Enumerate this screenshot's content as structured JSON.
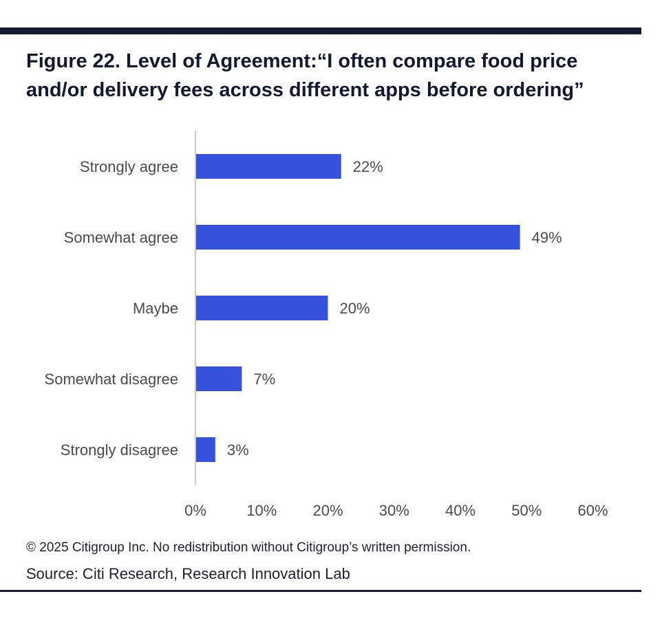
{
  "figure": {
    "title": "Figure 22. Level of Agreement:“I often compare food price and/or delivery fees across different apps before ordering”",
    "copyright": "© 2025 Citigroup Inc. No redistribution without Citigroup’s written permission.",
    "source": "Source: Citi Research, Research Innovation Lab"
  },
  "colors": {
    "bar": "#3452DB",
    "text": "#4a4a4a",
    "axis": "#c8c8c8",
    "rule": "#141a33"
  },
  "chart_data": {
    "type": "bar",
    "orientation": "horizontal",
    "title": "Level of Agreement:“I often compare food price and/or delivery fees across different apps before ordering”",
    "categories": [
      "Strongly agree",
      "Somewhat agree",
      "Maybe",
      "Somewhat disagree",
      "Strongly disagree"
    ],
    "values": [
      22,
      49,
      20,
      7,
      3
    ],
    "value_labels": [
      "22%",
      "49%",
      "20%",
      "7%",
      "3%"
    ],
    "xlim": [
      0,
      60
    ],
    "xticks": [
      0,
      10,
      20,
      30,
      40,
      50,
      60
    ],
    "xtick_labels": [
      "0%",
      "10%",
      "20%",
      "30%",
      "40%",
      "50%",
      "60%"
    ],
    "xlabel": "",
    "ylabel": "",
    "grid": false,
    "legend": "none"
  }
}
